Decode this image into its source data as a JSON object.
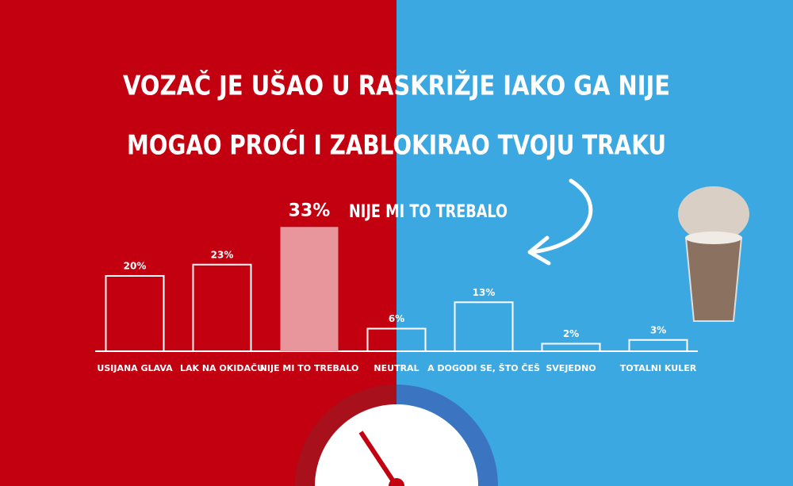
{
  "chart_data": {
    "type": "bar",
    "title": [
      "VOZAČ JE UŠAO U RASKRIŽJE IAKO GA NIJE",
      "MOGAO PROĆI I ZABLOKIRAO TVOJU TRAKU"
    ],
    "annotation": "NIJE MI TO TREBALO",
    "categories": [
      "USIJANA GLAVA",
      "LAK NA OKIDAČU",
      "NIJE MI TO TREBALO",
      "NEUTRAL",
      "A DOGODI SE, ŠTO ČEŠ",
      "SVEJEDNO",
      "TOTALNI KULER"
    ],
    "values": [
      20,
      23,
      33,
      6,
      13,
      2,
      3
    ],
    "value_labels": [
      "20%",
      "23%",
      "33%",
      "6%",
      "13%",
      "2%",
      "3%"
    ],
    "color": "#ffffff",
    "highlight_index": 2,
    "highlight_color": "#e8969c"
  }
}
